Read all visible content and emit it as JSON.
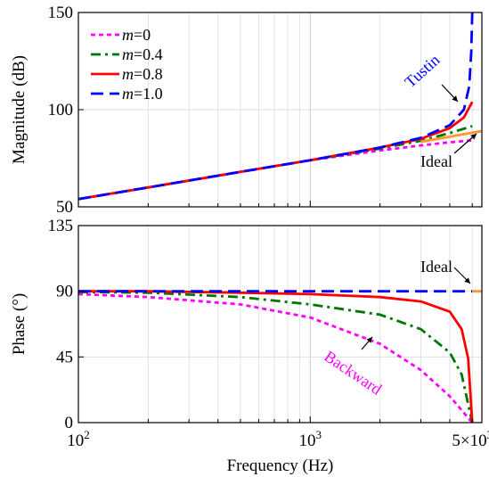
{
  "chart_data": [
    {
      "type": "line",
      "panel": "magnitude",
      "xlabel": "",
      "ylabel": "Magnitude (dB)",
      "xscale": "log",
      "xlim": [
        100,
        5500
      ],
      "ylim": [
        50,
        150
      ],
      "yticks": [
        "50",
        "100",
        "150"
      ],
      "grid": true,
      "legend_position": "top-left",
      "series": [
        {
          "name": "m=0",
          "legend_italic": "m",
          "legend_rest": "=0",
          "color": "#ff00ff",
          "style": "dotted",
          "x": [
            100,
            200,
            500,
            1000,
            2000,
            3000,
            4000,
            5000
          ],
          "y": [
            54.0,
            60.0,
            68.0,
            74.0,
            79.0,
            81.6,
            83.2,
            84.2
          ]
        },
        {
          "name": "m=0.4",
          "legend_italic": "m",
          "legend_rest": "=0.4",
          "color": "#007700",
          "style": "dashdot",
          "x": [
            100,
            200,
            500,
            1000,
            2000,
            3000,
            4000,
            5000
          ],
          "y": [
            54.0,
            60.0,
            68.0,
            74.0,
            80.0,
            84.0,
            88.0,
            91.5
          ]
        },
        {
          "name": "m=0.8",
          "legend_italic": "m",
          "legend_rest": "=0.8",
          "color": "#ff0000",
          "style": "solid",
          "x": [
            100,
            200,
            500,
            1000,
            2000,
            3000,
            4000,
            4600,
            5000
          ],
          "y": [
            54.0,
            60.0,
            68.0,
            74.0,
            80.5,
            85.0,
            90.5,
            96.0,
            104.0
          ]
        },
        {
          "name": "m=1.0",
          "legend_italic": "m",
          "legend_rest": "=1.0",
          "color": "#0000ff",
          "style": "dashed",
          "x": [
            100,
            200,
            500,
            1000,
            2000,
            3000,
            4000,
            4600,
            4850,
            4950,
            5000
          ],
          "y": [
            54.0,
            60.0,
            68.0,
            74.0,
            80.5,
            85.5,
            92.0,
            100.0,
            112.0,
            130.0,
            150.0
          ]
        },
        {
          "name": "",
          "color": "#ff9933",
          "style": "solid",
          "role": "ideal",
          "x": [
            3000,
            5500
          ],
          "y": [
            83.5,
            89.0
          ]
        }
      ],
      "annotations": [
        {
          "text": "Tustin",
          "color": "#0000ff",
          "arrow": true
        },
        {
          "text": "Ideal",
          "color": "#000000",
          "arrow": true
        }
      ]
    },
    {
      "type": "line",
      "panel": "phase",
      "xlabel": "Frequency (Hz)",
      "ylabel": "Phase (°)",
      "xscale": "log",
      "xlim": [
        100,
        5500
      ],
      "ylim": [
        0,
        135
      ],
      "yticks": [
        "0",
        "45",
        "90",
        "135"
      ],
      "xticks": [
        {
          "value": 100,
          "base": "10",
          "exp": "2",
          "mult": ""
        },
        {
          "value": 1000,
          "base": "10",
          "exp": "3",
          "mult": ""
        },
        {
          "value": 5000,
          "base": "10",
          "exp": "3",
          "mult": "5×"
        }
      ],
      "grid": true,
      "series": [
        {
          "name": "m=0",
          "color": "#ff00ff",
          "style": "dotted",
          "x": [
            100,
            200,
            500,
            1000,
            2000,
            3000,
            4000,
            5000
          ],
          "y": [
            88.0,
            86.0,
            81.0,
            72.0,
            54.0,
            36.0,
            18.0,
            0.0
          ]
        },
        {
          "name": "m=0.4",
          "color": "#007700",
          "style": "dashdot",
          "x": [
            100,
            200,
            500,
            1000,
            2000,
            3000,
            4000,
            4500,
            5000
          ],
          "y": [
            89.5,
            89.0,
            86.0,
            81.0,
            74.0,
            64.0,
            48.0,
            33.0,
            0.0
          ]
        },
        {
          "name": "m=0.8",
          "color": "#ff0000",
          "style": "solid",
          "x": [
            100,
            200,
            500,
            1000,
            2000,
            3000,
            4000,
            4500,
            4800,
            5000
          ],
          "y": [
            90.0,
            90.0,
            89.0,
            88.0,
            86.0,
            83.0,
            76.0,
            64.0,
            44.0,
            0.0
          ]
        },
        {
          "name": "m=1.0",
          "color": "#0000ff",
          "style": "dashed",
          "x": [
            100,
            1000,
            5000
          ],
          "y": [
            90.0,
            90.0,
            90.0
          ]
        },
        {
          "name": "",
          "color": "#ff9933",
          "style": "solid",
          "role": "ideal",
          "x": [
            5000,
            5500
          ],
          "y": [
            90.0,
            90.0
          ]
        }
      ],
      "annotations": [
        {
          "text": "Ideal",
          "color": "#000000",
          "arrow": true
        },
        {
          "text": "Backward",
          "color": "#ff00ff",
          "arrow": true
        }
      ]
    }
  ]
}
